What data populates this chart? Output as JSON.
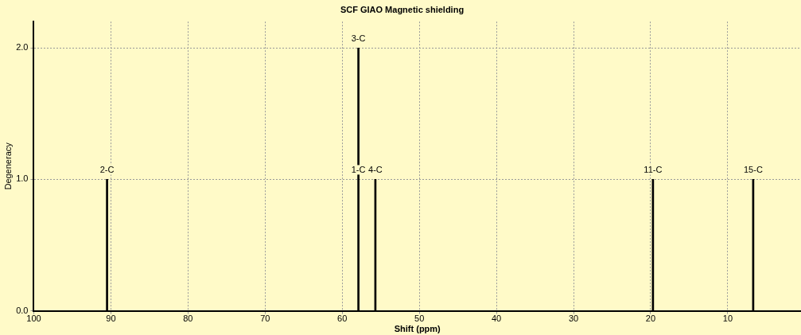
{
  "chart_data": {
    "type": "bar",
    "title": "SCF GIAO Magnetic shielding",
    "xlabel": "Shift (ppm)",
    "ylabel": "Degeneracy",
    "x": [
      90.5,
      57.9,
      55.7,
      19.7,
      6.7
    ],
    "values": [
      1,
      2,
      1,
      1,
      1
    ],
    "color": "#000000",
    "xlim": [
      100,
      0.5
    ],
    "xticks": [
      100,
      90,
      80,
      70,
      60,
      50,
      40,
      30,
      20,
      10
    ],
    "ylim": [
      0,
      2.2
    ],
    "yticks": [
      {
        "value": 0,
        "label": "0.0"
      },
      {
        "value": 1,
        "label": "1.0"
      },
      {
        "value": 2,
        "label": "2.0"
      }
    ],
    "grid": true,
    "legend": false,
    "annotations": [
      {
        "text": "2-C",
        "x": 90.5,
        "y": 1
      },
      {
        "text": "3-C",
        "x": 57.9,
        "y": 2
      },
      {
        "text": "1-C",
        "x": 57.9,
        "y": 1
      },
      {
        "text": "4-C",
        "x": 55.7,
        "y": 1
      },
      {
        "text": "11-C",
        "x": 19.7,
        "y": 1
      },
      {
        "text": "15-C",
        "x": 6.7,
        "y": 1
      }
    ]
  }
}
